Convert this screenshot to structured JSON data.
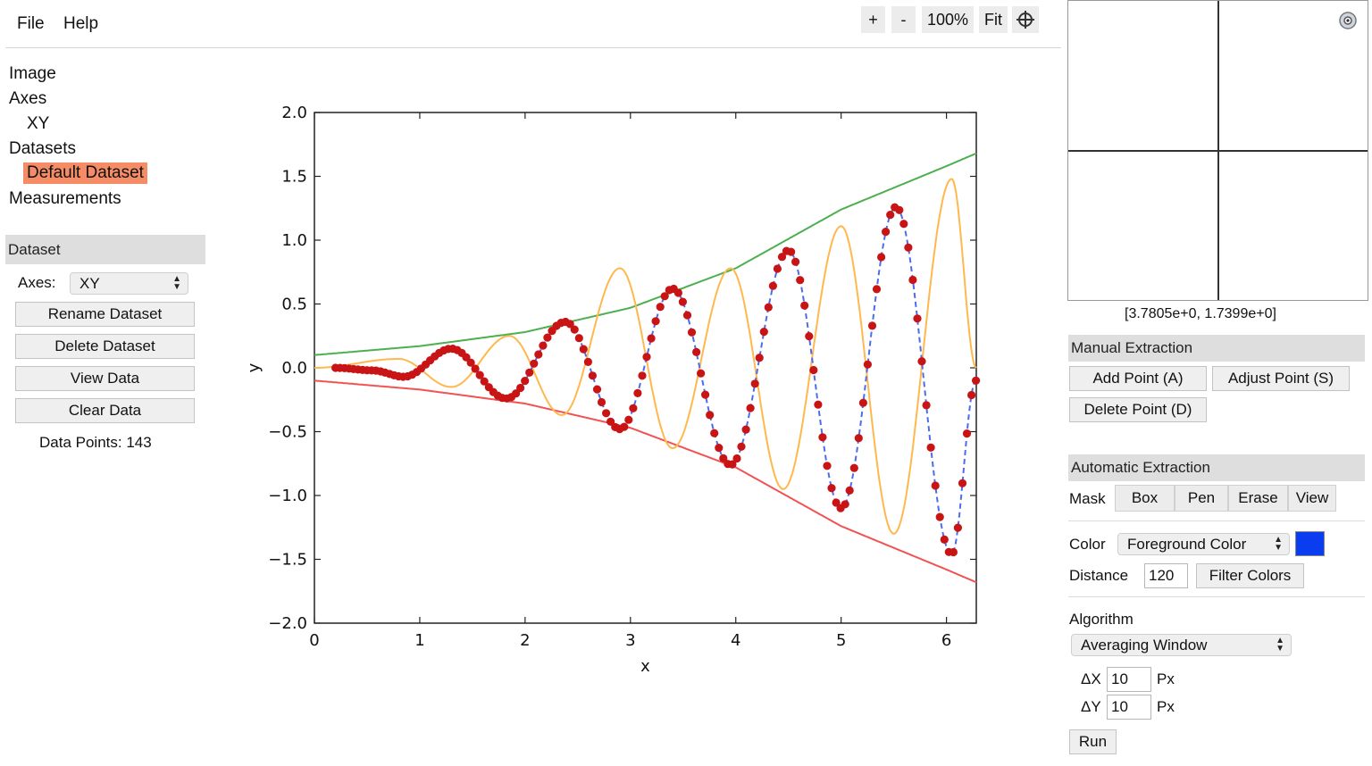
{
  "menu": {
    "file": "File",
    "help": "Help"
  },
  "zoom": {
    "plus": "+",
    "minus": "-",
    "level": "100%",
    "fit": "Fit"
  },
  "tree": {
    "image": "Image",
    "axes": "Axes",
    "axes_child": "XY",
    "datasets": "Datasets",
    "dataset_child": "Default Dataset",
    "measurements": "Measurements"
  },
  "dataset_panel": {
    "header": "Dataset",
    "axes_label": "Axes:",
    "axes_value": "XY",
    "rename": "Rename Dataset",
    "delete": "Delete Dataset",
    "view": "View Data",
    "clear": "Clear Data",
    "count_label": "Data Points: 143"
  },
  "zoom_view": {
    "cursor_readout": "[3.7805e+0, 1.7399e+0]"
  },
  "manual": {
    "header": "Manual Extraction",
    "add": "Add Point (A)",
    "adjust": "Adjust Point (S)",
    "delete": "Delete Point (D)"
  },
  "automatic": {
    "header": "Automatic Extraction",
    "mask_label": "Mask",
    "mask_box": "Box",
    "mask_pen": "Pen",
    "mask_erase": "Erase",
    "mask_view": "View",
    "color_label": "Color",
    "color_mode": "Foreground Color",
    "color_swatch": "#0a3cf0",
    "distance_label": "Distance",
    "distance_value": "120",
    "filter": "Filter Colors",
    "algorithm_label": "Algorithm",
    "algorithm_value": "Averaging Window",
    "dx_label": "ΔX",
    "dx_value": "10",
    "dy_label": "ΔY",
    "dy_value": "10",
    "px": "Px",
    "run": "Run"
  },
  "chart_data": {
    "type": "line",
    "xlabel": "x",
    "ylabel": "y",
    "xlim": [
      0,
      6.2832
    ],
    "ylim": [
      -2.0,
      2.0
    ],
    "x_ticks": [
      "0",
      "1",
      "2",
      "3",
      "4",
      "5",
      "6"
    ],
    "y_ticks": [
      "2.0",
      "1.5",
      "1.0",
      "0.5",
      "0.0",
      "−0.5",
      "−1.0",
      "−1.5",
      "−2.0"
    ],
    "grid": false,
    "series": [
      {
        "color": "#4caf50",
        "style": "solid",
        "x": [
          0,
          1,
          2,
          3,
          4,
          5,
          6,
          6.2832
        ],
        "y": [
          0.1,
          0.17,
          0.28,
          0.47,
          0.78,
          1.24,
          1.58,
          1.68
        ]
      },
      {
        "color": "#f25252",
        "style": "solid",
        "x": [
          0,
          1,
          2,
          3,
          4,
          5,
          6,
          6.2832
        ],
        "y": [
          -0.1,
          -0.17,
          -0.28,
          -0.47,
          -0.78,
          -1.24,
          -1.58,
          -1.68
        ]
      },
      {
        "color": "#ffb84d",
        "style": "solid",
        "x": [
          0,
          0.8,
          1.3,
          1.85,
          2.35,
          2.9,
          3.4,
          3.95,
          4.45,
          5.0,
          5.5,
          6.05,
          6.2832
        ],
        "y": [
          0.0,
          0.07,
          -0.15,
          0.25,
          -0.37,
          0.78,
          -0.63,
          0.78,
          -0.95,
          1.11,
          -1.3,
          1.48,
          0.0
        ]
      },
      {
        "color": "#4c6cf0",
        "style": "dashed",
        "x": [
          0.2,
          0.55,
          0.85,
          1.3,
          1.82,
          2.38,
          2.9,
          3.4,
          3.95,
          4.5,
          5.0,
          5.52,
          6.05,
          6.28
        ],
        "y": [
          0.0,
          -0.02,
          -0.07,
          0.15,
          -0.24,
          0.36,
          -0.48,
          0.62,
          -0.76,
          0.92,
          -1.1,
          1.26,
          -1.46,
          -0.1
        ]
      }
    ],
    "markers": {
      "color": "#c81414",
      "count": 143
    }
  }
}
